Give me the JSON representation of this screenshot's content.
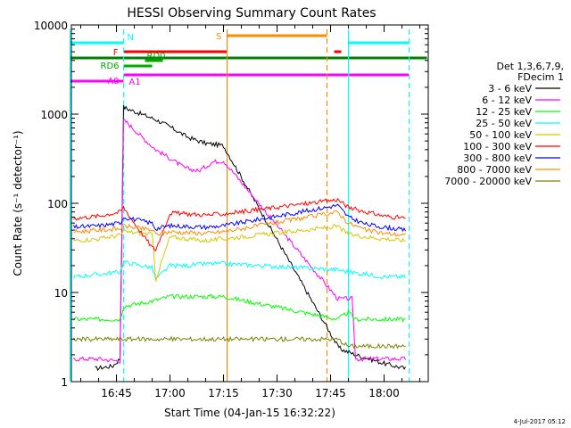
{
  "chart_data": {
    "type": "line",
    "title": "HESSI Observing Summary Count Rates",
    "xlabel": "Start Time (04-Jan-15 16:32:22)",
    "ylabel": "Count Rate (s⁻¹ detector⁻¹)",
    "y_scale": "log",
    "ylim": [
      1,
      10000
    ],
    "xlim": [
      "16:32:22",
      "18:12:22"
    ],
    "x_ticks": [
      "16:45",
      "17:00",
      "17:15",
      "17:30",
      "17:45",
      "18:00"
    ],
    "y_ticks": [
      "1",
      "10",
      "100",
      "1000",
      "10000"
    ],
    "timestamp": "4-Jul-2017 05:12",
    "legend": {
      "position": "right",
      "header_lines": [
        "Det 1,3,6,7,9,",
        "FDecim 1"
      ],
      "entries": [
        {
          "label": "3 - 6 keV",
          "color": "#000000"
        },
        {
          "label": "6 - 12 keV",
          "color": "#ff00ff"
        },
        {
          "label": "12 - 25 keV",
          "color": "#00ff00"
        },
        {
          "label": "25 - 50 keV",
          "color": "#00ffff"
        },
        {
          "label": "50 - 100 keV",
          "color": "#d4c800"
        },
        {
          "label": "100 - 300 keV",
          "color": "#ff0000"
        },
        {
          "label": "300 - 800 keV",
          "color": "#0000ff"
        },
        {
          "label": "800 - 7000 keV",
          "color": "#ff8c00"
        },
        {
          "label": "7000 - 20000 keV",
          "color": "#808000"
        }
      ]
    },
    "flag_bars": [
      {
        "label": "N",
        "color": "#00ffff",
        "segments": [
          [
            "16:32",
            "16:47"
          ],
          [
            "17:50",
            "18:07"
          ]
        ]
      },
      {
        "label": "S",
        "color": "#ff8c00",
        "segments": [
          [
            "17:16",
            "17:44"
          ]
        ]
      },
      {
        "label": "F",
        "color": "#ff0000",
        "segments": [
          [
            "16:47",
            "17:16"
          ],
          [
            "17:46",
            "17:48"
          ]
        ]
      },
      {
        "label": "RD0",
        "color": "#00aa00",
        "segments": [
          [
            "16:53",
            "16:58"
          ]
        ]
      },
      {
        "label": "RD6",
        "color": "#00aa00",
        "segments": [
          [
            "16:47",
            "16:55"
          ]
        ]
      },
      {
        "label": "A0",
        "color": "#ff00ff",
        "segments": [
          [
            "16:32",
            "16:47"
          ]
        ]
      },
      {
        "label": "A1",
        "color": "#ff00ff",
        "segments": [
          [
            "16:47",
            "18:07"
          ]
        ]
      }
    ],
    "flag_lines": [
      {
        "color": "#008000",
        "segments": [
          [
            "16:32",
            "18:12"
          ]
        ]
      }
    ],
    "vertical_lines": [
      {
        "x": "16:32",
        "color": "#00ffff",
        "style": "solid"
      },
      {
        "x": "16:47",
        "color": "#00ffff",
        "style": "dashed"
      },
      {
        "x": "17:16",
        "color": "#ff8c00",
        "style": "solid"
      },
      {
        "x": "17:44",
        "color": "#ff8c00",
        "style": "dashed"
      },
      {
        "x": "17:50",
        "color": "#00ffff",
        "style": "solid"
      },
      {
        "x": "18:07",
        "color": "#00ffff",
        "style": "dashed"
      }
    ],
    "series": [
      {
        "name": "3 - 6 keV",
        "color": "#000000",
        "x": [
          "16:39",
          "16:44",
          "16:46",
          "16:47",
          "16:48",
          "16:52",
          "16:56",
          "17:00",
          "17:05",
          "17:10",
          "17:14",
          "17:15",
          "17:47",
          "17:48",
          "17:52",
          "18:00",
          "18:06"
        ],
        "y": [
          1.4,
          1.5,
          1.8,
          1200,
          1150,
          1000,
          870,
          720,
          550,
          470,
          450,
          440,
          2.5,
          2.3,
          2.0,
          1.6,
          1.4
        ]
      },
      {
        "name": "6 - 12 keV",
        "color": "#ff00ff",
        "x": [
          "16:33",
          "16:40",
          "16:46",
          "16:47",
          "16:48",
          "16:52",
          "16:56",
          "17:00",
          "17:04",
          "17:08",
          "17:12",
          "17:15",
          "17:47",
          "17:49",
          "17:51",
          "17:52",
          "18:00",
          "18:06"
        ],
        "y": [
          1.8,
          1.8,
          1.7,
          850,
          800,
          560,
          400,
          320,
          250,
          230,
          290,
          300,
          8.5,
          8.5,
          8.5,
          1.8,
          1.8,
          1.8
        ]
      },
      {
        "name": "12 - 25 keV",
        "color": "#00ff00",
        "x": [
          "16:33",
          "16:40",
          "16:46",
          "16:47",
          "16:55",
          "17:00",
          "17:05",
          "17:10",
          "17:15",
          "17:47",
          "17:50",
          "17:52",
          "18:00",
          "18:06"
        ],
        "y": [
          5,
          5,
          5,
          7,
          8,
          9,
          9,
          9,
          9,
          5,
          6,
          5,
          5,
          5
        ]
      },
      {
        "name": "25 - 50 keV",
        "color": "#00ffff",
        "x": [
          "16:33",
          "16:40",
          "16:46",
          "16:47",
          "16:55",
          "16:56",
          "17:00",
          "17:05",
          "17:10",
          "17:15",
          "17:47",
          "17:50",
          "17:55",
          "18:00",
          "18:06"
        ],
        "y": [
          15,
          16,
          17,
          22,
          19,
          14,
          20,
          20,
          21,
          21,
          18,
          17,
          16,
          15,
          15
        ]
      },
      {
        "name": "50 - 100 keV",
        "color": "#d4c800",
        "x": [
          "16:33",
          "16:40",
          "16:46",
          "16:47",
          "16:55",
          "16:56",
          "17:00",
          "17:05",
          "17:10",
          "17:15",
          "17:47",
          "17:50",
          "17:55",
          "18:00",
          "18:06"
        ],
        "y": [
          38,
          40,
          44,
          48,
          45,
          14,
          42,
          40,
          38,
          40,
          55,
          45,
          42,
          40,
          38
        ]
      },
      {
        "name": "100 - 300 keV",
        "color": "#ff0000",
        "x": [
          "16:33",
          "16:40",
          "16:46",
          "16:47",
          "16:50",
          "16:55",
          "16:56",
          "17:00",
          "17:05",
          "17:10",
          "17:15",
          "17:47",
          "17:50",
          "17:55",
          "18:00",
          "18:06"
        ],
        "y": [
          68,
          72,
          80,
          90,
          60,
          32,
          30,
          78,
          76,
          74,
          76,
          110,
          90,
          80,
          72,
          68
        ]
      },
      {
        "name": "300 - 800 keV",
        "color": "#0000ff",
        "x": [
          "16:33",
          "16:40",
          "16:46",
          "16:47",
          "16:55",
          "16:56",
          "17:00",
          "17:05",
          "17:10",
          "17:15",
          "17:47",
          "17:50",
          "17:55",
          "18:00",
          "18:06"
        ],
        "y": [
          54,
          56,
          60,
          70,
          60,
          52,
          56,
          55,
          54,
          56,
          95,
          70,
          58,
          54,
          50
        ]
      },
      {
        "name": "800 - 7000 keV",
        "color": "#ff8c00",
        "x": [
          "16:33",
          "16:40",
          "16:46",
          "16:47",
          "16:55",
          "16:56",
          "17:00",
          "17:05",
          "17:10",
          "17:15",
          "17:47",
          "17:50",
          "17:55",
          "18:00",
          "18:06"
        ],
        "y": [
          48,
          50,
          52,
          56,
          50,
          45,
          48,
          47,
          46,
          48,
          80,
          60,
          50,
          46,
          44
        ]
      },
      {
        "name": "7000 - 20000 keV",
        "color": "#808000",
        "x": [
          "16:33",
          "16:40",
          "16:46",
          "16:47",
          "16:55",
          "17:00",
          "17:05",
          "17:10",
          "17:15",
          "17:47",
          "17:50",
          "17:55",
          "18:00",
          "18:06"
        ],
        "y": [
          3,
          3,
          3,
          3,
          3,
          3,
          3,
          3,
          3,
          3,
          2.5,
          2.5,
          2.5,
          2.5
        ]
      }
    ]
  }
}
